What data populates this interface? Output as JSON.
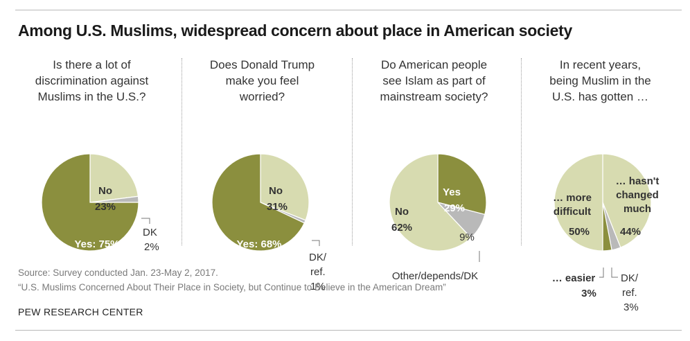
{
  "title": "Among U.S. Muslims, widespread concern about place in American society",
  "colors": {
    "primary": "#8b8f3e",
    "secondary": "#d7dbb0",
    "gray": "#b9b9b9",
    "rule": "#b8b8b8"
  },
  "chart_data": [
    {
      "type": "pie",
      "title": "Is there a lot of\ndiscrimination against\nMuslims in the U.S.?",
      "slices": [
        {
          "label": "No",
          "value": 23,
          "value_label": "23%",
          "color": "#d7dbb0"
        },
        {
          "label": "DK",
          "value": 2,
          "value_label": "2%",
          "color": "#b9b9b9"
        },
        {
          "label": "Yes:",
          "value": 75,
          "value_label": "75%",
          "color": "#8b8f3e"
        }
      ]
    },
    {
      "type": "pie",
      "title": "Does Donald Trump\nmake you feel\nworried?",
      "slices": [
        {
          "label": "No",
          "value": 31,
          "value_label": "31%",
          "color": "#d7dbb0"
        },
        {
          "label": "DK/\nref.",
          "value": 1,
          "value_label": "1%",
          "color": "#b9b9b9"
        },
        {
          "label": "Yes:",
          "value": 68,
          "value_label": "68%",
          "color": "#8b8f3e"
        }
      ]
    },
    {
      "type": "pie",
      "title": "Do American people\nsee Islam as part of\nmainstream society?",
      "slices": [
        {
          "label": "Yes",
          "value": 29,
          "value_label": "29%",
          "color": "#8b8f3e"
        },
        {
          "label": "Other/depends/DK",
          "value": 9,
          "value_label": "9%",
          "color": "#b9b9b9"
        },
        {
          "label": "No",
          "value": 62,
          "value_label": "62%",
          "color": "#d7dbb0"
        }
      ]
    },
    {
      "type": "pie",
      "title": "In recent years,\nbeing Muslim in the\nU.S. has gotten …",
      "slices": [
        {
          "label": "… hasn't\nchanged\nmuch",
          "value": 44,
          "value_label": "44%",
          "color": "#d7dbb0"
        },
        {
          "label": "DK/\nref.",
          "value": 3,
          "value_label": "3%",
          "color": "#b9b9b9"
        },
        {
          "label": "… easier",
          "value": 3,
          "value_label": "3%",
          "color": "#8b8f3e"
        },
        {
          "label": "… more\ndifficult",
          "value": 50,
          "value_label": "50%",
          "color": "#d7dbb0"
        }
      ]
    }
  ],
  "footer": {
    "source": "Source: Survey conducted Jan. 23-May 2, 2017.",
    "report": "“U.S. Muslims Concerned About Their Place in Society, but Continue to Believe in the American Dream”",
    "org": "PEW RESEARCH CENTER"
  }
}
